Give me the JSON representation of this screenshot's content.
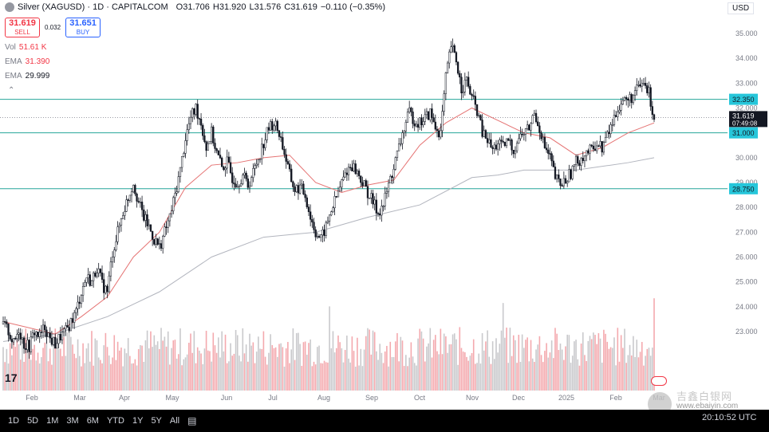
{
  "header": {
    "title": "Silver (XAGUSD) · 1D · CAPITALCOM",
    "open_label": "O",
    "open": "31.706",
    "high_label": "H",
    "high": "31.920",
    "low_label": "L",
    "low": "31.576",
    "close_label": "C",
    "close": "31.619",
    "change": "−0.110 (−0.35%)"
  },
  "trade": {
    "sell_price": "31.619",
    "sell_label": "SELL",
    "spread": "0.032",
    "buy_price": "31.651",
    "buy_label": "BUY"
  },
  "indicators": {
    "vol_label": "Vol",
    "vol_value": "51.61 K",
    "ema1_label": "EMA",
    "ema1_value": "31.390",
    "ema2_label": "EMA",
    "ema2_value": "29.999"
  },
  "collapse_icon": "chevron-up-icon",
  "currency": "USD",
  "timeframes": [
    "1D",
    "5D",
    "1M",
    "3M",
    "6M",
    "YTD",
    "1Y",
    "5Y",
    "All"
  ],
  "calendar_icon": "calendar-range-icon",
  "utc_label": "20:10:52 UTC",
  "watermark": {
    "cn": "吉鑫白银网",
    "url": "www.ebaiyin.com"
  },
  "colors": {
    "up": "#131722",
    "down": "#131722",
    "ema_fast": "#e57373",
    "ema_slow": "#b2b5be",
    "hline": "#26a69a",
    "vol_up": "#c9c9cc",
    "vol_down": "#f4a9ae"
  },
  "chart_data": {
    "type": "candlestick",
    "price_axis": {
      "ticks": [
        "35.000",
        "34.000",
        "33.000",
        "32.000",
        "31.000",
        "30.000",
        "29.000",
        "28.000",
        "27.000",
        "26.000",
        "25.000",
        "24.000",
        "23.000"
      ],
      "range": [
        22.0,
        35.5
      ]
    },
    "time_axis": [
      "Feb",
      "Mar",
      "Apr",
      "May",
      "Jun",
      "Jul",
      "Aug",
      "Sep",
      "Oct",
      "Nov",
      "Dec",
      "2025",
      "Feb",
      "Mar"
    ],
    "horizontal_levels": [
      32.35,
      31.0,
      28.75
    ],
    "level_labels": [
      "32.350",
      "31.000",
      "28.750"
    ],
    "last_price": "31.619",
    "countdown": "07:49:08",
    "close_path": [
      [
        0,
        23.3
      ],
      [
        3,
        23.0
      ],
      [
        6,
        22.5
      ],
      [
        9,
        23.1
      ],
      [
        12,
        22.5
      ],
      [
        15,
        22.4
      ],
      [
        18,
        23.0
      ],
      [
        21,
        22.8
      ],
      [
        24,
        23.2
      ],
      [
        27,
        22.7
      ],
      [
        30,
        22.5
      ],
      [
        33,
        22.8
      ],
      [
        36,
        23.0
      ],
      [
        39,
        23.4
      ],
      [
        42,
        23.8
      ],
      [
        45,
        24.6
      ],
      [
        48,
        25.2
      ],
      [
        51,
        25.0
      ],
      [
        54,
        25.6
      ],
      [
        57,
        24.9
      ],
      [
        60,
        24.6
      ],
      [
        63,
        26.2
      ],
      [
        66,
        27.0
      ],
      [
        69,
        27.8
      ],
      [
        72,
        28.4
      ],
      [
        75,
        29.0
      ],
      [
        78,
        28.2
      ],
      [
        81,
        27.6
      ],
      [
        84,
        27.2
      ],
      [
        87,
        26.7
      ],
      [
        90,
        26.4
      ],
      [
        93,
        27.0
      ],
      [
        96,
        27.6
      ],
      [
        99,
        28.5
      ],
      [
        102,
        29.5
      ],
      [
        105,
        30.8
      ],
      [
        108,
        31.6
      ],
      [
        111,
        32.0
      ],
      [
        114,
        31.4
      ],
      [
        117,
        30.4
      ],
      [
        120,
        31.0
      ],
      [
        123,
        30.2
      ],
      [
        126,
        29.6
      ],
      [
        129,
        29.8
      ],
      [
        132,
        29.2
      ],
      [
        135,
        29.0
      ],
      [
        138,
        29.3
      ],
      [
        141,
        28.9
      ],
      [
        144,
        29.4
      ],
      [
        147,
        30.0
      ],
      [
        150,
        30.6
      ],
      [
        153,
        31.2
      ],
      [
        156,
        31.4
      ],
      [
        159,
        31.0
      ],
      [
        162,
        30.2
      ],
      [
        165,
        29.3
      ],
      [
        168,
        28.7
      ],
      [
        171,
        28.8
      ],
      [
        174,
        28.5
      ],
      [
        177,
        27.6
      ],
      [
        180,
        27.0
      ],
      [
        183,
        26.7
      ],
      [
        186,
        27.2
      ],
      [
        189,
        27.9
      ],
      [
        192,
        28.4
      ],
      [
        195,
        29.0
      ],
      [
        198,
        29.5
      ],
      [
        201,
        29.7
      ],
      [
        204,
        29.4
      ],
      [
        207,
        29.0
      ],
      [
        210,
        28.6
      ],
      [
        213,
        28.2
      ],
      [
        216,
        27.8
      ],
      [
        219,
        28.1
      ],
      [
        222,
        28.9
      ],
      [
        225,
        29.6
      ],
      [
        228,
        30.4
      ],
      [
        231,
        31.2
      ],
      [
        234,
        31.8
      ],
      [
        237,
        31.5
      ],
      [
        240,
        31.4
      ],
      [
        243,
        31.6
      ],
      [
        246,
        31.8
      ],
      [
        249,
        31.2
      ],
      [
        252,
        31.0
      ],
      [
        255,
        33.2
      ],
      [
        258,
        34.5
      ],
      [
        261,
        33.9
      ],
      [
        264,
        32.8
      ],
      [
        267,
        33.1
      ],
      [
        270,
        32.4
      ],
      [
        273,
        31.9
      ],
      [
        276,
        31.0
      ],
      [
        279,
        30.7
      ],
      [
        282,
        30.3
      ],
      [
        285,
        30.6
      ],
      [
        288,
        30.4
      ],
      [
        291,
        30.7
      ],
      [
        294,
        30.3
      ],
      [
        297,
        30.8
      ],
      [
        300,
        31.0
      ],
      [
        303,
        31.2
      ],
      [
        306,
        31.8
      ],
      [
        309,
        31.2
      ],
      [
        312,
        30.4
      ],
      [
        315,
        30.0
      ],
      [
        318,
        29.2
      ],
      [
        321,
        28.9
      ],
      [
        324,
        29.1
      ],
      [
        327,
        29.4
      ],
      [
        330,
        29.8
      ],
      [
        333,
        30.0
      ],
      [
        336,
        30.2
      ],
      [
        339,
        30.3
      ],
      [
        342,
        30.6
      ],
      [
        345,
        30.4
      ],
      [
        348,
        30.9
      ],
      [
        351,
        31.4
      ],
      [
        354,
        32.0
      ],
      [
        357,
        32.3
      ],
      [
        360,
        32.3
      ],
      [
        363,
        32.5
      ],
      [
        366,
        32.8
      ],
      [
        369,
        33.0
      ],
      [
        372,
        32.6
      ],
      [
        375,
        31.6
      ]
    ],
    "ema_fast": [
      [
        0,
        23.4
      ],
      [
        30,
        22.9
      ],
      [
        45,
        23.6
      ],
      [
        60,
        24.4
      ],
      [
        75,
        26.0
      ],
      [
        90,
        27.0
      ],
      [
        105,
        28.8
      ],
      [
        120,
        29.7
      ],
      [
        135,
        29.8
      ],
      [
        150,
        30.0
      ],
      [
        165,
        30.1
      ],
      [
        180,
        29.0
      ],
      [
        195,
        28.6
      ],
      [
        210,
        28.9
      ],
      [
        225,
        29.1
      ],
      [
        240,
        30.5
      ],
      [
        255,
        31.4
      ],
      [
        270,
        32.0
      ],
      [
        285,
        31.5
      ],
      [
        300,
        31.0
      ],
      [
        315,
        30.8
      ],
      [
        330,
        30.1
      ],
      [
        345,
        30.4
      ],
      [
        360,
        31.0
      ],
      [
        375,
        31.4
      ]
    ],
    "ema_slow": [
      [
        0,
        22.6
      ],
      [
        30,
        22.9
      ],
      [
        60,
        23.6
      ],
      [
        90,
        24.6
      ],
      [
        120,
        26.0
      ],
      [
        150,
        26.8
      ],
      [
        180,
        27.0
      ],
      [
        210,
        27.6
      ],
      [
        240,
        28.1
      ],
      [
        270,
        29.2
      ],
      [
        285,
        29.3
      ],
      [
        300,
        29.5
      ],
      [
        330,
        29.5
      ],
      [
        360,
        29.8
      ],
      [
        375,
        30.0
      ]
    ]
  }
}
